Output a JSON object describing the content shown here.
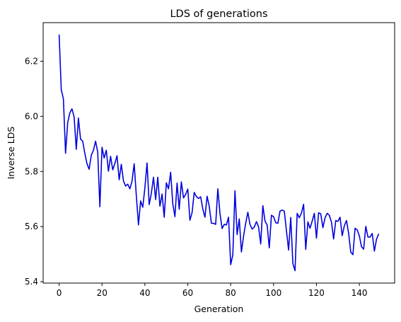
{
  "chart_data": {
    "type": "line",
    "title": "LDS of generations",
    "xlabel": "Generation",
    "ylabel": "Inverse LDS",
    "xlim": [
      -7.45,
      156.45
    ],
    "ylim": [
      5.395,
      6.34
    ],
    "xticks": [
      0,
      20,
      40,
      60,
      80,
      100,
      120,
      140
    ],
    "yticks": [
      5.4,
      5.6,
      5.8,
      6.0,
      6.2
    ],
    "ytick_labels": [
      "5.4",
      "5.6",
      "5.8",
      "6.0",
      "6.2"
    ],
    "grid": false,
    "line_color": "#0000dd",
    "series": [
      {
        "values": [
          6.297,
          6.097,
          6.063,
          5.866,
          5.977,
          6.013,
          6.027,
          5.998,
          5.88,
          5.994,
          5.917,
          5.91,
          5.865,
          5.828,
          5.808,
          5.859,
          5.877,
          5.91,
          5.87,
          5.672,
          5.888,
          5.849,
          5.877,
          5.801,
          5.855,
          5.806,
          5.829,
          5.857,
          5.77,
          5.826,
          5.766,
          5.747,
          5.754,
          5.737,
          5.765,
          5.828,
          5.712,
          5.606,
          5.693,
          5.67,
          5.741,
          5.831,
          5.68,
          5.721,
          5.779,
          5.698,
          5.779,
          5.674,
          5.718,
          5.634,
          5.759,
          5.737,
          5.797,
          5.683,
          5.636,
          5.758,
          5.663,
          5.762,
          5.704,
          5.717,
          5.736,
          5.623,
          5.651,
          5.724,
          5.709,
          5.702,
          5.708,
          5.664,
          5.634,
          5.71,
          5.674,
          5.612,
          5.612,
          5.608,
          5.737,
          5.648,
          5.593,
          5.608,
          5.606,
          5.634,
          5.462,
          5.497,
          5.73,
          5.571,
          5.628,
          5.508,
          5.565,
          5.612,
          5.652,
          5.608,
          5.591,
          5.598,
          5.618,
          5.599,
          5.537,
          5.676,
          5.62,
          5.606,
          5.523,
          5.641,
          5.636,
          5.614,
          5.612,
          5.656,
          5.66,
          5.656,
          5.585,
          5.515,
          5.633,
          5.466,
          5.44,
          5.648,
          5.632,
          5.649,
          5.681,
          5.517,
          5.617,
          5.594,
          5.62,
          5.648,
          5.558,
          5.65,
          5.646,
          5.596,
          5.632,
          5.648,
          5.641,
          5.616,
          5.555,
          5.622,
          5.619,
          5.634,
          5.567,
          5.603,
          5.622,
          5.575,
          5.507,
          5.498,
          5.594,
          5.588,
          5.566,
          5.527,
          5.518,
          5.601,
          5.562,
          5.562,
          5.575,
          5.511,
          5.554,
          5.574
        ]
      }
    ]
  }
}
